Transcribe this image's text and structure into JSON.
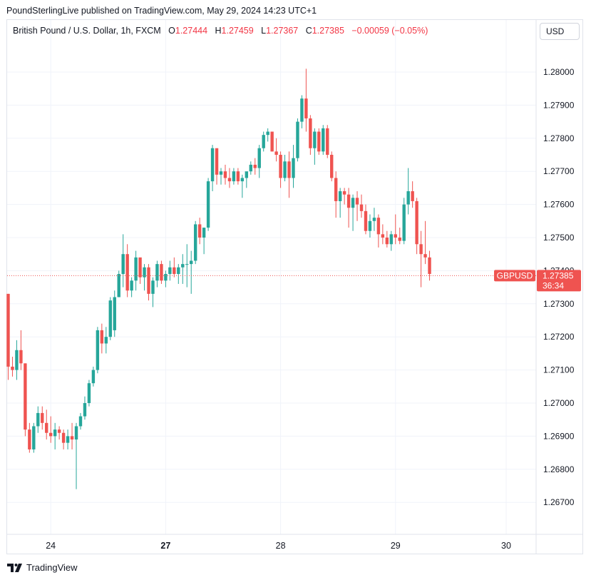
{
  "publisher_line": "PoundSterlingLive published on TradingView.com, May 29, 2024 14:23 UTC+1",
  "legend": {
    "symbol": "British Pound / U.S. Dollar, 1h, FXCM",
    "open_label": "O",
    "open": "1.27444",
    "high_label": "H",
    "high": "1.27459",
    "low_label": "L",
    "low": "1.27367",
    "close_label": "C",
    "close": "1.27385",
    "change": "−0.00059 (−0.05%)"
  },
  "currency_button": "USD",
  "price_tag": {
    "symbol": "GBPUSD",
    "price": "1.27385",
    "countdown": "36:34"
  },
  "footer_brand": "TradingView",
  "colors": {
    "up": "#26a69a",
    "down": "#ef5350",
    "grid": "#f0f3fa",
    "text": "#131722",
    "last_price_line": "#ef5350"
  },
  "chart_data": {
    "type": "candlestick",
    "timeframe": "1h",
    "ylim": [
      1.2662,
      1.281
    ],
    "y_ticks": [
      "1.28000",
      "1.27900",
      "1.27800",
      "1.27700",
      "1.27600",
      "1.27500",
      "1.27400",
      "1.27300",
      "1.27200",
      "1.27100",
      "1.27000",
      "1.26900",
      "1.26800",
      "1.26700"
    ],
    "x_ticks": [
      {
        "label": "24",
        "index": 10,
        "bold": false
      },
      {
        "label": "27",
        "index": 37,
        "bold": true
      },
      {
        "label": "28",
        "index": 64,
        "bold": false
      },
      {
        "label": "29",
        "index": 91,
        "bold": false
      },
      {
        "label": "30",
        "index": 117,
        "bold": false
      }
    ],
    "last_price": 1.27385,
    "candles": [
      [
        1.2733,
        1.2733,
        1.2707,
        1.2711
      ],
      [
        1.2711,
        1.2714,
        1.2708,
        1.271
      ],
      [
        1.271,
        1.2719,
        1.2707,
        1.2716
      ],
      [
        1.2716,
        1.2722,
        1.271,
        1.2712
      ],
      [
        1.2712,
        1.2712,
        1.269,
        1.2692
      ],
      [
        1.2692,
        1.2694,
        1.2685,
        1.2686
      ],
      [
        1.2686,
        1.2694,
        1.2685,
        1.2693
      ],
      [
        1.2693,
        1.2699,
        1.2691,
        1.2697
      ],
      [
        1.2697,
        1.2699,
        1.2692,
        1.2694
      ],
      [
        1.2694,
        1.2698,
        1.2689,
        1.2691
      ],
      [
        1.2691,
        1.2696,
        1.2688,
        1.269
      ],
      [
        1.269,
        1.2694,
        1.2686,
        1.2692
      ],
      [
        1.2692,
        1.2693,
        1.2689,
        1.2691
      ],
      [
        1.2691,
        1.2692,
        1.2686,
        1.2688
      ],
      [
        1.2688,
        1.2692,
        1.2686,
        1.269
      ],
      [
        1.269,
        1.2694,
        1.2686,
        1.2689
      ],
      [
        1.2689,
        1.2694,
        1.2674,
        1.2693
      ],
      [
        1.2693,
        1.2697,
        1.2692,
        1.2696
      ],
      [
        1.2696,
        1.2702,
        1.2695,
        1.27
      ],
      [
        1.27,
        1.2707,
        1.2699,
        1.2706
      ],
      [
        1.2706,
        1.2711,
        1.2705,
        1.271
      ],
      [
        1.271,
        1.2723,
        1.2709,
        1.2722
      ],
      [
        1.2722,
        1.2724,
        1.2715,
        1.2718
      ],
      [
        1.2718,
        1.2723,
        1.2715,
        1.272
      ],
      [
        1.272,
        1.2732,
        1.2719,
        1.2731
      ],
      [
        1.2722,
        1.2734,
        1.272,
        1.2732
      ],
      [
        1.2732,
        1.274,
        1.2732,
        1.2739
      ],
      [
        1.2739,
        1.2751,
        1.2735,
        1.2745
      ],
      [
        1.2745,
        1.2748,
        1.2732,
        1.2734
      ],
      [
        1.2734,
        1.2738,
        1.2732,
        1.2737
      ],
      [
        1.2737,
        1.2746,
        1.2734,
        1.2744
      ],
      [
        1.2744,
        1.2743,
        1.2736,
        1.2738
      ],
      [
        1.2738,
        1.2742,
        1.2734,
        1.2741
      ],
      [
        1.2741,
        1.2742,
        1.2731,
        1.2733
      ],
      [
        1.2733,
        1.2738,
        1.2729,
        1.2737
      ],
      [
        1.2737,
        1.2743,
        1.2735,
        1.2742
      ],
      [
        1.2742,
        1.2743,
        1.2736,
        1.2737
      ],
      [
        1.2737,
        1.274,
        1.2735,
        1.2739
      ],
      [
        1.2739,
        1.2743,
        1.2737,
        1.2741
      ],
      [
        1.2741,
        1.2744,
        1.2738,
        1.2739
      ],
      [
        1.2739,
        1.2742,
        1.2736,
        1.2741
      ],
      [
        1.2741,
        1.2745,
        1.2736,
        1.2742
      ],
      [
        1.2742,
        1.2748,
        1.2735,
        1.2742
      ],
      [
        1.2742,
        1.2746,
        1.2733,
        1.2743
      ],
      [
        1.2743,
        1.2755,
        1.2742,
        1.2754
      ],
      [
        1.2754,
        1.2756,
        1.2748,
        1.275
      ],
      [
        1.275,
        1.2752,
        1.2745,
        1.2753
      ],
      [
        1.2753,
        1.2768,
        1.2752,
        1.2767
      ],
      [
        1.2767,
        1.2778,
        1.2764,
        1.2777
      ],
      [
        1.2777,
        1.2776,
        1.2766,
        1.2769
      ],
      [
        1.2769,
        1.2771,
        1.2766,
        1.277
      ],
      [
        1.277,
        1.2772,
        1.2766,
        1.2768
      ],
      [
        1.2768,
        1.2771,
        1.2765,
        1.2767
      ],
      [
        1.2767,
        1.2771,
        1.2766,
        1.277
      ],
      [
        1.277,
        1.2771,
        1.2766,
        1.2767
      ],
      [
        1.2767,
        1.2769,
        1.2762,
        1.2768
      ],
      [
        1.2768,
        1.2769,
        1.2765,
        1.277
      ],
      [
        1.277,
        1.2773,
        1.2769,
        1.2772
      ],
      [
        1.2772,
        1.2774,
        1.2769,
        1.2771
      ],
      [
        1.2771,
        1.2778,
        1.2768,
        1.2777
      ],
      [
        1.2777,
        1.2782,
        1.2776,
        1.2781
      ],
      [
        1.2781,
        1.2783,
        1.2779,
        1.2782
      ],
      [
        1.2782,
        1.2782,
        1.2776,
        1.2776
      ],
      [
        1.2776,
        1.278,
        1.2773,
        1.2775
      ],
      [
        1.2775,
        1.2776,
        1.2765,
        1.2768
      ],
      [
        1.2768,
        1.2775,
        1.2767,
        1.2773
      ],
      [
        1.2773,
        1.2776,
        1.2762,
        1.2768
      ],
      [
        1.2768,
        1.2778,
        1.2765,
        1.2774
      ],
      [
        1.2774,
        1.2786,
        1.2773,
        1.2785
      ],
      [
        1.2785,
        1.2793,
        1.2783,
        1.2792
      ],
      [
        1.2792,
        1.2801,
        1.2782,
        1.2786
      ],
      [
        1.2786,
        1.2787,
        1.2775,
        1.2777
      ],
      [
        1.2777,
        1.2783,
        1.2772,
        1.2782
      ],
      [
        1.2782,
        1.2783,
        1.2775,
        1.2776
      ],
      [
        1.2776,
        1.2784,
        1.2775,
        1.2783
      ],
      [
        1.2783,
        1.2784,
        1.2774,
        1.2775
      ],
      [
        1.2775,
        1.2776,
        1.2767,
        1.2768
      ],
      [
        1.2768,
        1.277,
        1.2756,
        1.2761
      ],
      [
        1.2761,
        1.2765,
        1.2756,
        1.2764
      ],
      [
        1.2764,
        1.2765,
        1.276,
        1.2763
      ],
      [
        1.2763,
        1.2765,
        1.2753,
        1.2759
      ],
      [
        1.2759,
        1.2763,
        1.2752,
        1.2762
      ],
      [
        1.2762,
        1.2764,
        1.2755,
        1.276
      ],
      [
        1.276,
        1.2763,
        1.2756,
        1.2758
      ],
      [
        1.2758,
        1.276,
        1.2751,
        1.2752
      ],
      [
        1.2752,
        1.2757,
        1.275,
        1.2755
      ],
      [
        1.2755,
        1.2759,
        1.2752,
        1.2756
      ],
      [
        1.2756,
        1.2757,
        1.2747,
        1.2751
      ],
      [
        1.2751,
        1.2754,
        1.2748,
        1.275
      ],
      [
        1.275,
        1.2752,
        1.2747,
        1.2748
      ],
      [
        1.2748,
        1.2752,
        1.2746,
        1.2751
      ],
      [
        1.2751,
        1.2757,
        1.2748,
        1.275
      ],
      [
        1.275,
        1.2753,
        1.2748,
        1.2749
      ],
      [
        1.2749,
        1.2762,
        1.2748,
        1.276
      ],
      [
        1.276,
        1.2771,
        1.2757,
        1.2764
      ],
      [
        1.2764,
        1.2767,
        1.2759,
        1.2761
      ],
      [
        1.2761,
        1.2762,
        1.2745,
        1.2748
      ],
      [
        1.2748,
        1.2752,
        1.2735,
        1.2745
      ],
      [
        1.2745,
        1.2755,
        1.2742,
        1.2744
      ],
      [
        1.2744,
        1.2746,
        1.2737,
        1.2739
      ]
    ]
  }
}
